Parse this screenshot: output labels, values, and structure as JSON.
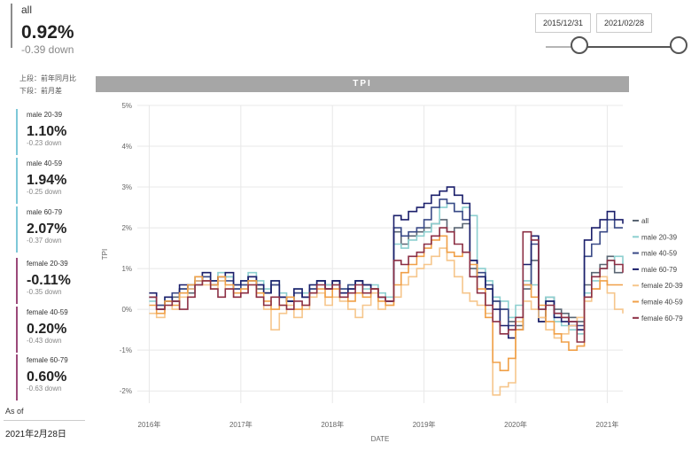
{
  "summary": {
    "label": "all",
    "value": "0.92%",
    "change": "-0.39 down"
  },
  "notes": [
    "上段：前年同月比",
    "下段：前月差"
  ],
  "cards": [
    {
      "label": "male 20-39",
      "value": "1.10%",
      "change": "-0.23 down",
      "color": "#7ec8d8"
    },
    {
      "label": "male 40-59",
      "value": "1.94%",
      "change": "-0.25 down",
      "color": "#7ec8d8"
    },
    {
      "label": "male 60-79",
      "value": "2.07%",
      "change": "-0.37 down",
      "color": "#7ec8d8"
    },
    {
      "label": "female 20-39",
      "value": "-0.11%",
      "change": "-0.35 down",
      "color": "#9b4a7a"
    },
    {
      "label": "female 40-59",
      "value": "0.20%",
      "change": "-0.43 down",
      "color": "#9b4a7a"
    },
    {
      "label": "female 60-79",
      "value": "0.60%",
      "change": "-0.63 down",
      "color": "#9b4a7a"
    }
  ],
  "as_of": {
    "label": "As of",
    "value": "2021年2月28日"
  },
  "date_range": {
    "start": "2015/12/31",
    "end": "2021/02/28"
  },
  "chart_data": {
    "type": "line",
    "title": "TPI",
    "xlabel": "DATE",
    "ylabel": "TPI",
    "ylim": [
      -2.3,
      5
    ],
    "xlim": [
      2015.87,
      2021.17
    ],
    "y_ticks": [
      5,
      4,
      3,
      2,
      1,
      0,
      -1,
      -2
    ],
    "y_tick_labels": [
      "5%",
      "4%",
      "3%",
      "2%",
      "1%",
      "0%",
      "-1%",
      "-2%"
    ],
    "x_ticks": [
      2016,
      2017,
      2018,
      2019,
      2020,
      2021
    ],
    "x_tick_labels": [
      "2016年",
      "2017年",
      "2018年",
      "2019年",
      "2020年",
      "2021年"
    ],
    "grid": true,
    "legend_position": "right",
    "series": [
      {
        "name": "all",
        "color": "#5a6673",
        "step": true,
        "x": [
          2016.0,
          2016.08,
          2016.17,
          2016.25,
          2016.33,
          2016.42,
          2016.5,
          2016.58,
          2016.67,
          2016.75,
          2016.83,
          2016.92,
          2017.0,
          2017.08,
          2017.17,
          2017.25,
          2017.33,
          2017.42,
          2017.5,
          2017.58,
          2017.67,
          2017.75,
          2017.83,
          2017.92,
          2018.0,
          2018.08,
          2018.17,
          2018.25,
          2018.33,
          2018.42,
          2018.5,
          2018.58,
          2018.67,
          2018.75,
          2018.83,
          2018.92,
          2019.0,
          2019.08,
          2019.17,
          2019.25,
          2019.33,
          2019.42,
          2019.5,
          2019.58,
          2019.67,
          2019.75,
          2019.83,
          2019.92,
          2020.0,
          2020.08,
          2020.17,
          2020.25,
          2020.33,
          2020.42,
          2020.5,
          2020.58,
          2020.67,
          2020.75,
          2020.83,
          2020.92,
          2021.0,
          2021.08,
          2021.17
        ],
        "values": [
          0.3,
          0.1,
          0.2,
          0.3,
          0.5,
          0.4,
          0.6,
          0.8,
          0.6,
          0.7,
          0.8,
          0.5,
          0.6,
          0.7,
          0.5,
          0.4,
          0.6,
          0.3,
          0.2,
          0.4,
          0.3,
          0.5,
          0.7,
          0.6,
          0.7,
          0.4,
          0.5,
          0.7,
          0.6,
          0.5,
          0.3,
          0.2,
          1.9,
          1.6,
          1.8,
          1.9,
          2.0,
          2.1,
          2.2,
          1.9,
          2.0,
          2.1,
          1.0,
          0.8,
          0.5,
          0.2,
          0.0,
          -0.3,
          -0.4,
          0.5,
          1.2,
          -0.3,
          0.3,
          0.0,
          -0.1,
          -0.2,
          -0.3,
          0.6,
          0.9,
          1.1,
          1.3,
          0.9,
          0.9
        ]
      },
      {
        "name": "male 20-39",
        "color": "#8ccfcf",
        "step": true,
        "x": [
          2016.0,
          2016.08,
          2016.17,
          2016.25,
          2016.33,
          2016.42,
          2016.5,
          2016.58,
          2016.67,
          2016.75,
          2016.83,
          2016.92,
          2017.0,
          2017.08,
          2017.17,
          2017.25,
          2017.33,
          2017.42,
          2017.5,
          2017.58,
          2017.67,
          2017.75,
          2017.83,
          2017.92,
          2018.0,
          2018.08,
          2018.17,
          2018.25,
          2018.33,
          2018.42,
          2018.5,
          2018.58,
          2018.67,
          2018.75,
          2018.83,
          2018.92,
          2019.0,
          2019.08,
          2019.17,
          2019.25,
          2019.33,
          2019.42,
          2019.5,
          2019.58,
          2019.67,
          2019.75,
          2019.83,
          2019.92,
          2020.0,
          2020.08,
          2020.17,
          2020.25,
          2020.33,
          2020.42,
          2020.5,
          2020.58,
          2020.67,
          2020.75,
          2020.83,
          2020.92,
          2021.0,
          2021.08,
          2021.17
        ],
        "values": [
          0.2,
          0.0,
          0.3,
          0.2,
          0.4,
          0.6,
          0.8,
          0.9,
          0.7,
          0.9,
          0.8,
          0.6,
          0.7,
          0.9,
          0.7,
          0.5,
          0.7,
          0.4,
          0.3,
          0.5,
          0.4,
          0.6,
          0.7,
          0.6,
          0.6,
          0.5,
          0.6,
          0.7,
          0.5,
          0.6,
          0.4,
          0.3,
          1.6,
          1.5,
          1.7,
          1.8,
          1.9,
          2.1,
          2.5,
          2.6,
          2.4,
          2.5,
          2.3,
          1.0,
          0.7,
          0.3,
          0.2,
          -0.2,
          0.1,
          0.7,
          0.6,
          0.0,
          0.3,
          -0.3,
          -0.4,
          -0.5,
          -0.6,
          0.4,
          0.7,
          1.0,
          1.2,
          1.3,
          1.1
        ]
      },
      {
        "name": "male 40-59",
        "color": "#3a4a87",
        "step": true,
        "x": [
          2016.0,
          2016.08,
          2016.17,
          2016.25,
          2016.33,
          2016.42,
          2016.5,
          2016.58,
          2016.67,
          2016.75,
          2016.83,
          2016.92,
          2017.0,
          2017.08,
          2017.17,
          2017.25,
          2017.33,
          2017.42,
          2017.5,
          2017.58,
          2017.67,
          2017.75,
          2017.83,
          2017.92,
          2018.0,
          2018.08,
          2018.17,
          2018.25,
          2018.33,
          2018.42,
          2018.5,
          2018.58,
          2018.67,
          2018.75,
          2018.83,
          2018.92,
          2019.0,
          2019.08,
          2019.17,
          2019.25,
          2019.33,
          2019.42,
          2019.5,
          2019.58,
          2019.67,
          2019.75,
          2019.83,
          2019.92,
          2020.0,
          2020.08,
          2020.17,
          2020.25,
          2020.33,
          2020.42,
          2020.5,
          2020.58,
          2020.67,
          2020.75,
          2020.83,
          2020.92,
          2021.0,
          2021.08,
          2021.17
        ],
        "values": [
          0.3,
          0.1,
          0.2,
          0.4,
          0.5,
          0.6,
          0.7,
          0.8,
          0.6,
          0.8,
          0.7,
          0.5,
          0.6,
          0.8,
          0.6,
          0.4,
          0.6,
          0.3,
          0.2,
          0.4,
          0.3,
          0.5,
          0.7,
          0.5,
          0.7,
          0.5,
          0.6,
          0.7,
          0.6,
          0.5,
          0.3,
          0.2,
          2.0,
          1.8,
          1.9,
          2.0,
          2.2,
          2.5,
          2.7,
          2.6,
          2.4,
          2.2,
          1.2,
          0.9,
          0.6,
          0.2,
          0.0,
          -0.4,
          -0.5,
          0.6,
          1.6,
          -0.2,
          0.2,
          -0.1,
          -0.2,
          -0.3,
          -0.4,
          1.3,
          1.6,
          1.9,
          2.2,
          2.0,
          2.0
        ]
      },
      {
        "name": "male 60-79",
        "color": "#1b1f6b",
        "step": true,
        "x": [
          2016.0,
          2016.08,
          2016.17,
          2016.25,
          2016.33,
          2016.42,
          2016.5,
          2016.58,
          2016.67,
          2016.75,
          2016.83,
          2016.92,
          2017.0,
          2017.08,
          2017.17,
          2017.25,
          2017.33,
          2017.42,
          2017.5,
          2017.58,
          2017.67,
          2017.75,
          2017.83,
          2017.92,
          2018.0,
          2018.08,
          2018.17,
          2018.25,
          2018.33,
          2018.42,
          2018.5,
          2018.58,
          2018.67,
          2018.75,
          2018.83,
          2018.92,
          2019.0,
          2019.08,
          2019.17,
          2019.25,
          2019.33,
          2019.42,
          2019.5,
          2019.58,
          2019.67,
          2019.75,
          2019.83,
          2019.92,
          2020.0,
          2020.08,
          2020.17,
          2020.25,
          2020.33,
          2020.42,
          2020.5,
          2020.58,
          2020.67,
          2020.75,
          2020.83,
          2020.92,
          2021.0,
          2021.08,
          2021.17
        ],
        "values": [
          0.4,
          0.0,
          0.3,
          0.2,
          0.6,
          0.5,
          0.7,
          0.9,
          0.7,
          0.8,
          0.9,
          0.6,
          0.7,
          0.8,
          0.6,
          0.4,
          0.7,
          0.3,
          0.2,
          0.5,
          0.3,
          0.6,
          0.7,
          0.5,
          0.7,
          0.4,
          0.5,
          0.7,
          0.6,
          0.5,
          0.3,
          0.2,
          2.3,
          2.2,
          2.4,
          2.5,
          2.6,
          2.8,
          2.9,
          3.0,
          2.8,
          2.6,
          1.2,
          0.8,
          0.5,
          0.0,
          -0.4,
          -0.7,
          -0.5,
          1.1,
          1.8,
          -0.3,
          0.2,
          -0.2,
          -0.3,
          -0.4,
          -0.5,
          1.7,
          2.0,
          2.2,
          2.4,
          2.2,
          2.1
        ]
      },
      {
        "name": "female 20-39",
        "color": "#f6c68c",
        "step": true,
        "x": [
          2016.0,
          2016.08,
          2016.17,
          2016.25,
          2016.33,
          2016.42,
          2016.5,
          2016.58,
          2016.67,
          2016.75,
          2016.83,
          2016.92,
          2017.0,
          2017.08,
          2017.17,
          2017.25,
          2017.33,
          2017.42,
          2017.5,
          2017.58,
          2017.67,
          2017.75,
          2017.83,
          2017.92,
          2018.0,
          2018.08,
          2018.17,
          2018.25,
          2018.33,
          2018.42,
          2018.5,
          2018.58,
          2018.67,
          2018.75,
          2018.83,
          2018.92,
          2019.0,
          2019.08,
          2019.17,
          2019.25,
          2019.33,
          2019.42,
          2019.5,
          2019.58,
          2019.67,
          2019.75,
          2019.83,
          2019.92,
          2020.0,
          2020.08,
          2020.17,
          2020.25,
          2020.33,
          2020.42,
          2020.5,
          2020.58,
          2020.67,
          2020.75,
          2020.83,
          2020.92,
          2021.0,
          2021.08,
          2021.17
        ],
        "values": [
          -0.1,
          -0.2,
          0.1,
          0.0,
          0.3,
          0.5,
          0.7,
          0.6,
          0.5,
          0.7,
          0.5,
          0.3,
          0.4,
          0.6,
          0.3,
          0.0,
          -0.5,
          -0.1,
          0.1,
          -0.2,
          0.0,
          0.3,
          0.4,
          0.1,
          0.3,
          0.2,
          0.0,
          -0.2,
          0.1,
          0.4,
          0.0,
          0.1,
          0.3,
          0.6,
          0.8,
          1.0,
          1.1,
          1.3,
          1.5,
          1.2,
          0.8,
          0.4,
          0.2,
          0.1,
          -0.1,
          -2.1,
          -1.9,
          -1.8,
          -0.3,
          0.2,
          0.0,
          -0.2,
          -0.5,
          -0.7,
          -0.6,
          -0.4,
          -0.2,
          0.2,
          0.5,
          0.8,
          0.4,
          0.0,
          -0.1
        ]
      },
      {
        "name": "female 40-59",
        "color": "#f0a048",
        "step": true,
        "x": [
          2016.0,
          2016.08,
          2016.17,
          2016.25,
          2016.33,
          2016.42,
          2016.5,
          2016.58,
          2016.67,
          2016.75,
          2016.83,
          2016.92,
          2017.0,
          2017.08,
          2017.17,
          2017.25,
          2017.33,
          2017.42,
          2017.5,
          2017.58,
          2017.67,
          2017.75,
          2017.83,
          2017.92,
          2018.0,
          2018.08,
          2018.17,
          2018.25,
          2018.33,
          2018.42,
          2018.5,
          2018.58,
          2018.67,
          2018.75,
          2018.83,
          2018.92,
          2019.0,
          2019.08,
          2019.17,
          2019.25,
          2019.33,
          2019.42,
          2019.5,
          2019.58,
          2019.67,
          2019.75,
          2019.83,
          2019.92,
          2020.0,
          2020.08,
          2020.17,
          2020.25,
          2020.33,
          2020.42,
          2020.5,
          2020.58,
          2020.67,
          2020.75,
          2020.83,
          2020.92,
          2021.0,
          2021.08,
          2021.17
        ],
        "values": [
          0.1,
          -0.1,
          0.2,
          0.1,
          0.4,
          0.6,
          0.8,
          0.7,
          0.6,
          0.8,
          0.6,
          0.4,
          0.5,
          0.7,
          0.4,
          0.2,
          0.0,
          0.1,
          0.3,
          0.0,
          0.1,
          0.4,
          0.5,
          0.3,
          0.5,
          0.3,
          0.2,
          0.4,
          0.3,
          0.5,
          0.2,
          0.1,
          0.6,
          0.9,
          1.1,
          1.3,
          1.5,
          1.7,
          1.8,
          1.4,
          1.3,
          1.4,
          1.1,
          0.5,
          -0.2,
          -1.3,
          -1.5,
          -1.2,
          -0.5,
          0.6,
          0.3,
          0.1,
          -0.3,
          -0.6,
          -0.8,
          -1.0,
          -0.9,
          0.3,
          0.5,
          0.7,
          0.6,
          0.6,
          0.6
        ]
      },
      {
        "name": "female 60-79",
        "color": "#8c2f44",
        "step": true,
        "x": [
          2016.0,
          2016.08,
          2016.17,
          2016.25,
          2016.33,
          2016.42,
          2016.5,
          2016.58,
          2016.67,
          2016.75,
          2016.83,
          2016.92,
          2017.0,
          2017.08,
          2017.17,
          2017.25,
          2017.33,
          2017.42,
          2017.5,
          2017.58,
          2017.67,
          2017.75,
          2017.83,
          2017.92,
          2018.0,
          2018.08,
          2018.17,
          2018.25,
          2018.33,
          2018.42,
          2018.5,
          2018.58,
          2018.67,
          2018.75,
          2018.83,
          2018.92,
          2019.0,
          2019.08,
          2019.17,
          2019.25,
          2019.33,
          2019.42,
          2019.5,
          2019.58,
          2019.67,
          2019.75,
          2019.83,
          2019.92,
          2020.0,
          2020.08,
          2020.17,
          2020.25,
          2020.33,
          2020.42,
          2020.5,
          2020.58,
          2020.67,
          2020.75,
          2020.83,
          2020.92,
          2021.0,
          2021.08,
          2021.17
        ],
        "values": [
          0.3,
          0.0,
          0.1,
          0.2,
          0.0,
          0.3,
          0.6,
          0.7,
          0.5,
          0.3,
          0.5,
          0.3,
          0.4,
          0.6,
          0.3,
          0.1,
          0.3,
          0.1,
          0.0,
          0.2,
          0.1,
          0.4,
          0.6,
          0.5,
          0.6,
          0.3,
          0.4,
          0.6,
          0.4,
          0.5,
          0.3,
          0.2,
          1.2,
          1.1,
          1.3,
          1.4,
          1.6,
          1.8,
          2.0,
          1.9,
          1.6,
          1.4,
          0.8,
          0.4,
          0.1,
          -0.3,
          -0.6,
          -0.5,
          -0.2,
          1.9,
          1.7,
          0.0,
          0.1,
          -0.1,
          -0.2,
          -0.3,
          -0.8,
          0.3,
          0.8,
          1.0,
          1.2,
          1.1,
          0.9
        ]
      }
    ]
  }
}
